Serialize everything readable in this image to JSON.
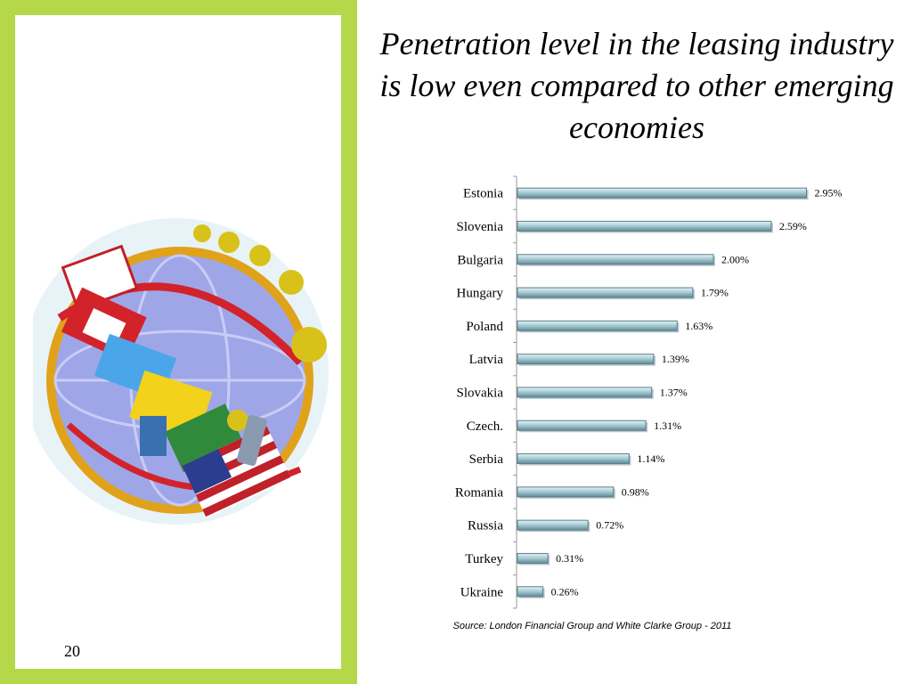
{
  "slide": {
    "title": "Penetration level in the leasing industry is low even compared to other emerging economies",
    "number": "20",
    "source": "Source: London Financial Group and White Clarke Group - 2011",
    "accent_color": "#b5d84a"
  },
  "illustration": {
    "icon": "globe-with-flags-icon"
  },
  "chart_data": {
    "type": "bar",
    "orientation": "horizontal",
    "title": "",
    "xlabel": "",
    "ylabel": "",
    "categories": [
      "Estonia",
      "Slovenia",
      "Bulgaria",
      "Hungary",
      "Poland",
      "Latvia",
      "Slovakia",
      "Czech.",
      "Serbia",
      "Romania",
      "Russia",
      "Turkey",
      "Ukraine"
    ],
    "values": [
      2.95,
      2.59,
      2.0,
      1.79,
      1.63,
      1.39,
      1.37,
      1.31,
      1.14,
      0.98,
      0.72,
      0.31,
      0.26
    ],
    "labels": [
      "2.95%",
      "2.59%",
      "2.00%",
      "1.79%",
      "1.63%",
      "1.39%",
      "1.37%",
      "1.31%",
      "1.14%",
      "0.98%",
      "0.72%",
      "0.31%",
      "0.26%"
    ],
    "xlim": [
      0,
      3.0
    ],
    "grid": false,
    "legend": "none",
    "bar_color": "#a9cdd6"
  }
}
